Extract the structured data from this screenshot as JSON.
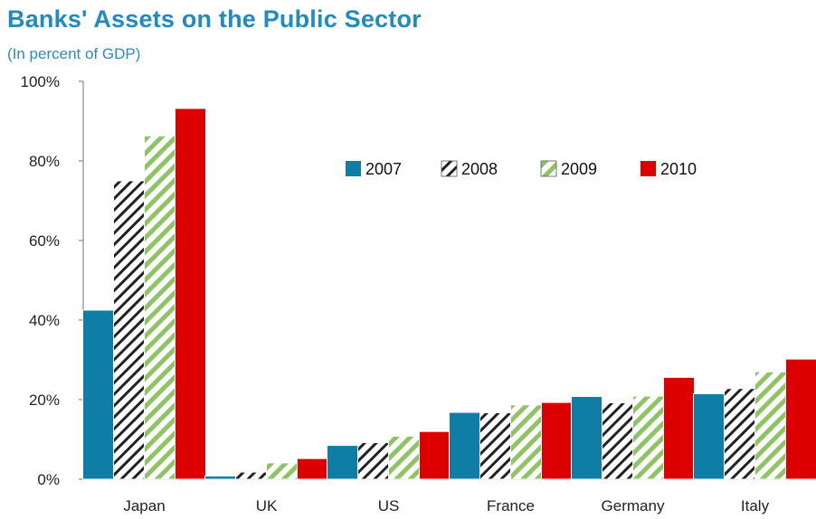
{
  "chart_data": {
    "type": "bar",
    "title": "Banks' Assets on the Public Sector",
    "subtitle": "(In percent of GDP)",
    "categories": [
      "Japan",
      "UK",
      "US",
      "France",
      "Germany",
      "Italy"
    ],
    "series": [
      {
        "name": "2007",
        "values": [
          42.5,
          0.8,
          8.5,
          16.8,
          20.8,
          21.5
        ],
        "color": "#0f7ea6",
        "pattern": "solid"
      },
      {
        "name": "2008",
        "values": [
          75,
          1.8,
          9.2,
          16.7,
          19.2,
          22.8
        ],
        "color": "#ffffff",
        "pattern": "black-diagonal-hatch"
      },
      {
        "name": "2009",
        "values": [
          86.3,
          4.1,
          10.8,
          18.7,
          20.9,
          27.0
        ],
        "color": "#ffffff",
        "pattern": "green-diagonal-hatch"
      },
      {
        "name": "2010",
        "values": [
          93.2,
          5.2,
          12.0,
          19.3,
          25.6,
          30.2
        ],
        "color": "#dc0000",
        "pattern": "solid"
      }
    ],
    "ylim": [
      0,
      100
    ],
    "yticks": [
      "0%",
      "20%",
      "40%",
      "60%",
      "80%",
      "100%"
    ],
    "grid": false,
    "legend_position": "top-right"
  }
}
